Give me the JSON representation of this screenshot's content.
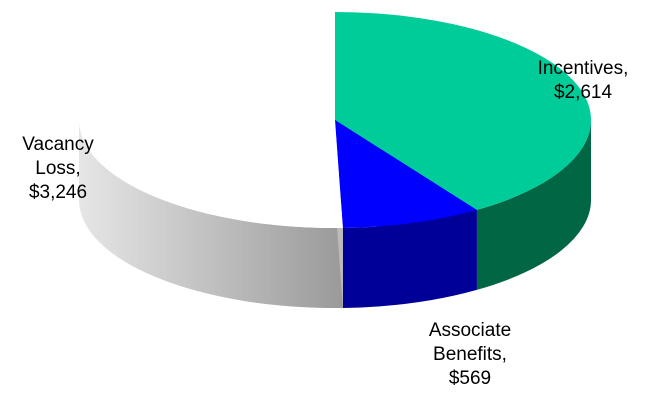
{
  "chart_data": {
    "type": "pie",
    "style": "3d",
    "title": "",
    "slices": [
      {
        "label": "Incentives",
        "value_text": "$2,614",
        "value": 2614,
        "color": "#00cc99",
        "side_color": "#006644"
      },
      {
        "label": "Associate Benefits",
        "value_text": "$569",
        "value": 569,
        "color": "#0000ff",
        "side_color": "#000099"
      },
      {
        "label": "Vacancy Loss",
        "value_text": "$3,246",
        "value": 3246,
        "color": "#ffffff",
        "side_color": "#bbbbbb"
      }
    ],
    "labels": [
      {
        "lines": [
          "Incentives,",
          "$2,614"
        ]
      },
      {
        "lines": [
          "Associate",
          "Benefits,",
          "$569"
        ]
      },
      {
        "lines": [
          "Vacancy",
          "Loss,",
          "$3,246"
        ]
      }
    ]
  }
}
